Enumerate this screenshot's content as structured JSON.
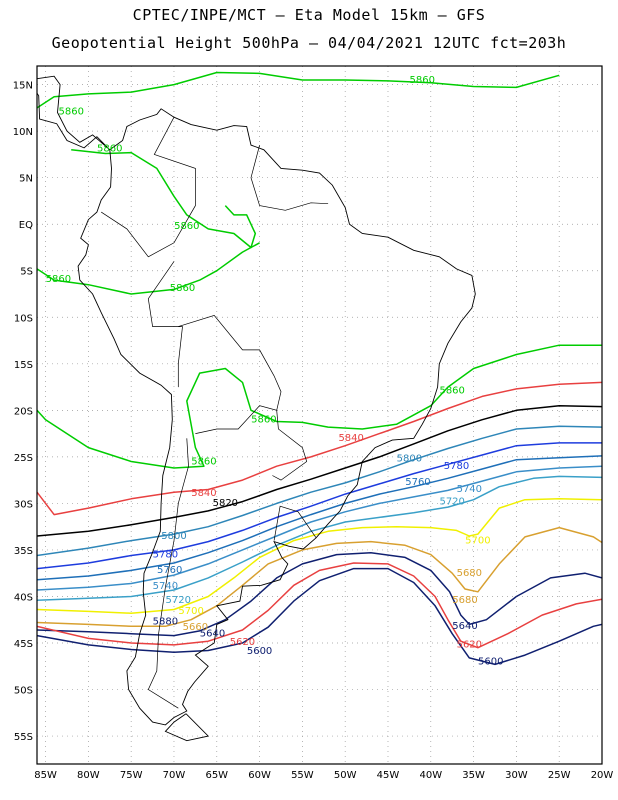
{
  "header": {
    "line1": "CPTEC/INPE/MCT –  Eta Model 15km – GFS",
    "line2": "Geopotential Height 500hPa – 04/04/2021 12UTC fct=203h"
  },
  "axes": {
    "lat_labels": [
      "15N",
      "10N",
      "5N",
      "EQ",
      "5S",
      "10S",
      "15S",
      "20S",
      "25S",
      "30S",
      "35S",
      "40S",
      "45S",
      "50S",
      "55S"
    ],
    "lon_labels": [
      "85W",
      "80W",
      "75W",
      "70W",
      "65W",
      "60W",
      "55W",
      "50W",
      "45W",
      "40W",
      "35W",
      "30W",
      "25W",
      "20W"
    ],
    "lat_range": [
      17,
      -58
    ],
    "lon_range": [
      -86,
      -20
    ],
    "grid": "dotted"
  },
  "colors": {
    "c5860": "#00cc00",
    "c5840": "#e84040",
    "c5820": "#000000",
    "c5800": "#2e86b8",
    "c5780": "#1e3cde",
    "c5760": "#1e6fb8",
    "c5740": "#3a8ec8",
    "c5720": "#3aa0c8",
    "c5700": "#f0f000",
    "c5680": "#d8a030",
    "c5640": "#102070",
    "c5620": "#e84040",
    "c5600": "#102070",
    "coast": "#000000"
  },
  "contour_labels": [
    {
      "text": "5860",
      "lon": -41,
      "lat": 15.2,
      "color": "#00cc00"
    },
    {
      "text": "5860",
      "lon": -82,
      "lat": 11.8,
      "color": "#00cc00"
    },
    {
      "text": "5860",
      "lon": -77.5,
      "lat": 7.8,
      "color": "#00cc00"
    },
    {
      "text": "5860",
      "lon": -68.5,
      "lat": -0.5,
      "color": "#00cc00"
    },
    {
      "text": "5860",
      "lon": -83.5,
      "lat": -6.2,
      "color": "#00cc00"
    },
    {
      "text": "5860",
      "lon": -69,
      "lat": -7.2,
      "color": "#00cc00"
    },
    {
      "text": "5860",
      "lon": -37.5,
      "lat": -18.2,
      "color": "#00cc00"
    },
    {
      "text": "5860",
      "lon": -59.5,
      "lat": -21.3,
      "color": "#00cc00"
    },
    {
      "text": "5860",
      "lon": -66.5,
      "lat": -25.8,
      "color": "#00cc00"
    },
    {
      "text": "5840",
      "lon": -66.5,
      "lat": -29.2,
      "color": "#e84040"
    },
    {
      "text": "5840",
      "lon": -49.3,
      "lat": -23.3,
      "color": "#e84040"
    },
    {
      "text": "5820",
      "lon": -64,
      "lat": -30.3,
      "color": "#000000"
    },
    {
      "text": "5800",
      "lon": -42.5,
      "lat": -25.5,
      "color": "#2e86b8"
    },
    {
      "text": "5800",
      "lon": -70,
      "lat": -33.8,
      "color": "#2e86b8"
    },
    {
      "text": "5780",
      "lon": -37,
      "lat": -26.3,
      "color": "#1e3cde"
    },
    {
      "text": "5780",
      "lon": -71,
      "lat": -35.8,
      "color": "#1e3cde"
    },
    {
      "text": "5760",
      "lon": -41.5,
      "lat": -28.0,
      "color": "#1e6fb8"
    },
    {
      "text": "5760",
      "lon": -70.5,
      "lat": -37.5,
      "color": "#1e6fb8"
    },
    {
      "text": "5740",
      "lon": -35.5,
      "lat": -28.8,
      "color": "#3a8ec8"
    },
    {
      "text": "5740",
      "lon": -71,
      "lat": -39.2,
      "color": "#3a8ec8"
    },
    {
      "text": "5720",
      "lon": -37.5,
      "lat": -30.1,
      "color": "#3aa0c8"
    },
    {
      "text": "5720",
      "lon": -69.5,
      "lat": -40.7,
      "color": "#3aa0c8"
    },
    {
      "text": "5700",
      "lon": -34.5,
      "lat": -34.3,
      "color": "#f0f000"
    },
    {
      "text": "5700",
      "lon": -68,
      "lat": -41.9,
      "color": "#f0f000"
    },
    {
      "text": "5680",
      "lon": -35.5,
      "lat": -37.8,
      "color": "#d8a030"
    },
    {
      "text": "5680",
      "lon": -36,
      "lat": -40.7,
      "color": "#d8a030"
    },
    {
      "text": "5660",
      "lon": -67.5,
      "lat": -43.6,
      "color": "#d8a030"
    },
    {
      "text": "5640",
      "lon": -65.5,
      "lat": -44.3,
      "color": "#102070"
    },
    {
      "text": "5640",
      "lon": -36,
      "lat": -43.5,
      "color": "#102070"
    },
    {
      "text": "5620",
      "lon": -62,
      "lat": -45.2,
      "color": "#e84040"
    },
    {
      "text": "5620",
      "lon": -35.5,
      "lat": -45.5,
      "color": "#e84040"
    },
    {
      "text": "5600",
      "lon": -33,
      "lat": -47.3,
      "color": "#102070"
    },
    {
      "text": "5600",
      "lon": -60,
      "lat": -46.2,
      "color": "#102070"
    },
    {
      "text": "5880",
      "lon": -71,
      "lat": -43.0,
      "color": "#102070"
    }
  ]
}
